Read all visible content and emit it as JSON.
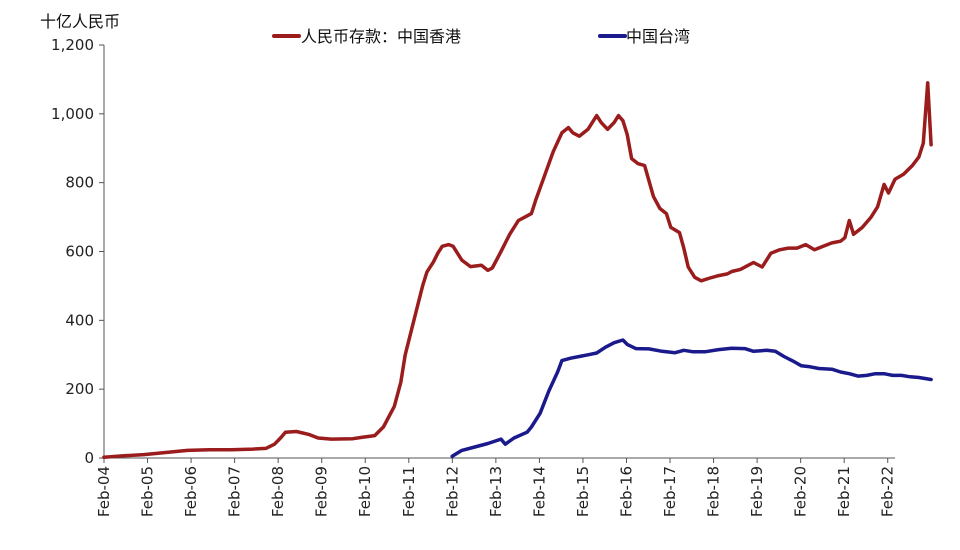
{
  "chart_data": {
    "type": "line",
    "unit_label": "十亿人民币",
    "ylim": [
      0,
      1200
    ],
    "yticks": [
      "0",
      "200",
      "400",
      "600",
      "800",
      "1,000",
      "1,200"
    ],
    "ytick_values": [
      0,
      200,
      400,
      600,
      800,
      1000,
      1200
    ],
    "xlim": [
      2004.083,
      2022.25
    ],
    "xticks": [
      "Feb-04",
      "Feb-05",
      "Feb-06",
      "Feb-07",
      "Feb-08",
      "Feb-09",
      "Feb-10",
      "Feb-11",
      "Feb-12",
      "Feb-13",
      "Feb-14",
      "Feb-15",
      "Feb-16",
      "Feb-17",
      "Feb-18",
      "Feb-19",
      "Feb-20",
      "Feb-21",
      "Feb-22"
    ],
    "xtick_values": [
      2004.083,
      2005.083,
      2006.083,
      2007.083,
      2008.083,
      2009.083,
      2010.083,
      2011.083,
      2012.083,
      2013.083,
      2014.083,
      2015.083,
      2016.083,
      2017.083,
      2018.083,
      2019.083,
      2020.083,
      2021.083,
      2022.083
    ],
    "legend_position": "top",
    "series": [
      {
        "name": "人民币存款：中国香港",
        "color": "#9b1c1c",
        "points": [
          [
            2004.08,
            2
          ],
          [
            2004.5,
            6
          ],
          [
            2005.0,
            10
          ],
          [
            2005.5,
            16
          ],
          [
            2006.0,
            22
          ],
          [
            2006.5,
            24
          ],
          [
            2007.0,
            24
          ],
          [
            2007.5,
            26
          ],
          [
            2007.8,
            28
          ],
          [
            2008.0,
            40
          ],
          [
            2008.15,
            60
          ],
          [
            2008.25,
            75
          ],
          [
            2008.5,
            77
          ],
          [
            2008.8,
            68
          ],
          [
            2009.0,
            58
          ],
          [
            2009.3,
            55
          ],
          [
            2009.8,
            56
          ],
          [
            2010.0,
            60
          ],
          [
            2010.3,
            65
          ],
          [
            2010.5,
            90
          ],
          [
            2010.75,
            150
          ],
          [
            2010.9,
            220
          ],
          [
            2011.0,
            300
          ],
          [
            2011.2,
            400
          ],
          [
            2011.4,
            500
          ],
          [
            2011.5,
            540
          ],
          [
            2011.65,
            570
          ],
          [
            2011.75,
            595
          ],
          [
            2011.85,
            615
          ],
          [
            2012.0,
            620
          ],
          [
            2012.1,
            615
          ],
          [
            2012.3,
            575
          ],
          [
            2012.5,
            556
          ],
          [
            2012.75,
            560
          ],
          [
            2012.9,
            545
          ],
          [
            2013.0,
            552
          ],
          [
            2013.2,
            600
          ],
          [
            2013.4,
            650
          ],
          [
            2013.6,
            690
          ],
          [
            2013.75,
            700
          ],
          [
            2013.9,
            710
          ],
          [
            2014.0,
            750
          ],
          [
            2014.2,
            820
          ],
          [
            2014.4,
            890
          ],
          [
            2014.6,
            945
          ],
          [
            2014.75,
            960
          ],
          [
            2014.85,
            945
          ],
          [
            2015.0,
            935
          ],
          [
            2015.2,
            955
          ],
          [
            2015.4,
            995
          ],
          [
            2015.5,
            975
          ],
          [
            2015.65,
            955
          ],
          [
            2015.8,
            975
          ],
          [
            2015.9,
            995
          ],
          [
            2016.0,
            980
          ],
          [
            2016.1,
            940
          ],
          [
            2016.2,
            870
          ],
          [
            2016.35,
            855
          ],
          [
            2016.5,
            850
          ],
          [
            2016.7,
            760
          ],
          [
            2016.85,
            725
          ],
          [
            2017.0,
            710
          ],
          [
            2017.1,
            670
          ],
          [
            2017.3,
            655
          ],
          [
            2017.4,
            610
          ],
          [
            2017.5,
            555
          ],
          [
            2017.65,
            525
          ],
          [
            2017.8,
            515
          ],
          [
            2018.0,
            523
          ],
          [
            2018.2,
            530
          ],
          [
            2018.4,
            535
          ],
          [
            2018.5,
            542
          ],
          [
            2018.7,
            548
          ],
          [
            2019.0,
            568
          ],
          [
            2019.2,
            555
          ],
          [
            2019.4,
            595
          ],
          [
            2019.6,
            605
          ],
          [
            2019.8,
            610
          ],
          [
            2020.0,
            610
          ],
          [
            2020.2,
            620
          ],
          [
            2020.4,
            605
          ],
          [
            2020.6,
            615
          ],
          [
            2020.8,
            625
          ],
          [
            2021.0,
            630
          ],
          [
            2021.1,
            640
          ],
          [
            2021.2,
            690
          ],
          [
            2021.3,
            650
          ],
          [
            2021.5,
            670
          ],
          [
            2021.7,
            700
          ],
          [
            2021.85,
            730
          ],
          [
            2022.0,
            795
          ],
          [
            2022.1,
            770
          ],
          [
            2022.25,
            810
          ],
          [
            2022.45,
            825
          ],
          [
            2022.65,
            850
          ],
          [
            2022.8,
            875
          ],
          [
            2022.9,
            915
          ],
          [
            2023.0,
            1090
          ],
          [
            2023.08,
            910
          ]
        ]
      },
      {
        "name": "中国台湾",
        "color": "#1a1a8c",
        "points": [
          [
            2012.08,
            5
          ],
          [
            2012.3,
            22
          ],
          [
            2012.6,
            32
          ],
          [
            2012.9,
            42
          ],
          [
            2013.2,
            55
          ],
          [
            2013.3,
            40
          ],
          [
            2013.5,
            58
          ],
          [
            2013.8,
            75
          ],
          [
            2013.9,
            90
          ],
          [
            2014.1,
            130
          ],
          [
            2014.3,
            195
          ],
          [
            2014.5,
            250
          ],
          [
            2014.6,
            283
          ],
          [
            2014.8,
            290
          ],
          [
            2015.0,
            295
          ],
          [
            2015.2,
            300
          ],
          [
            2015.4,
            305
          ],
          [
            2015.6,
            322
          ],
          [
            2015.8,
            335
          ],
          [
            2016.0,
            343
          ],
          [
            2016.1,
            330
          ],
          [
            2016.3,
            318
          ],
          [
            2016.6,
            317
          ],
          [
            2016.9,
            310
          ],
          [
            2017.2,
            306
          ],
          [
            2017.4,
            313
          ],
          [
            2017.6,
            309
          ],
          [
            2017.9,
            309
          ],
          [
            2018.2,
            315
          ],
          [
            2018.5,
            319
          ],
          [
            2018.8,
            318
          ],
          [
            2019.0,
            310
          ],
          [
            2019.3,
            313
          ],
          [
            2019.5,
            310
          ],
          [
            2019.7,
            295
          ],
          [
            2019.9,
            282
          ],
          [
            2020.1,
            268
          ],
          [
            2020.3,
            265
          ],
          [
            2020.5,
            260
          ],
          [
            2020.8,
            258
          ],
          [
            2021.0,
            250
          ],
          [
            2021.2,
            245
          ],
          [
            2021.4,
            238
          ],
          [
            2021.6,
            240
          ],
          [
            2021.8,
            245
          ],
          [
            2022.0,
            245
          ],
          [
            2022.2,
            240
          ],
          [
            2022.4,
            240
          ],
          [
            2022.6,
            236
          ],
          [
            2022.8,
            234
          ],
          [
            2023.08,
            228
          ]
        ]
      }
    ]
  }
}
